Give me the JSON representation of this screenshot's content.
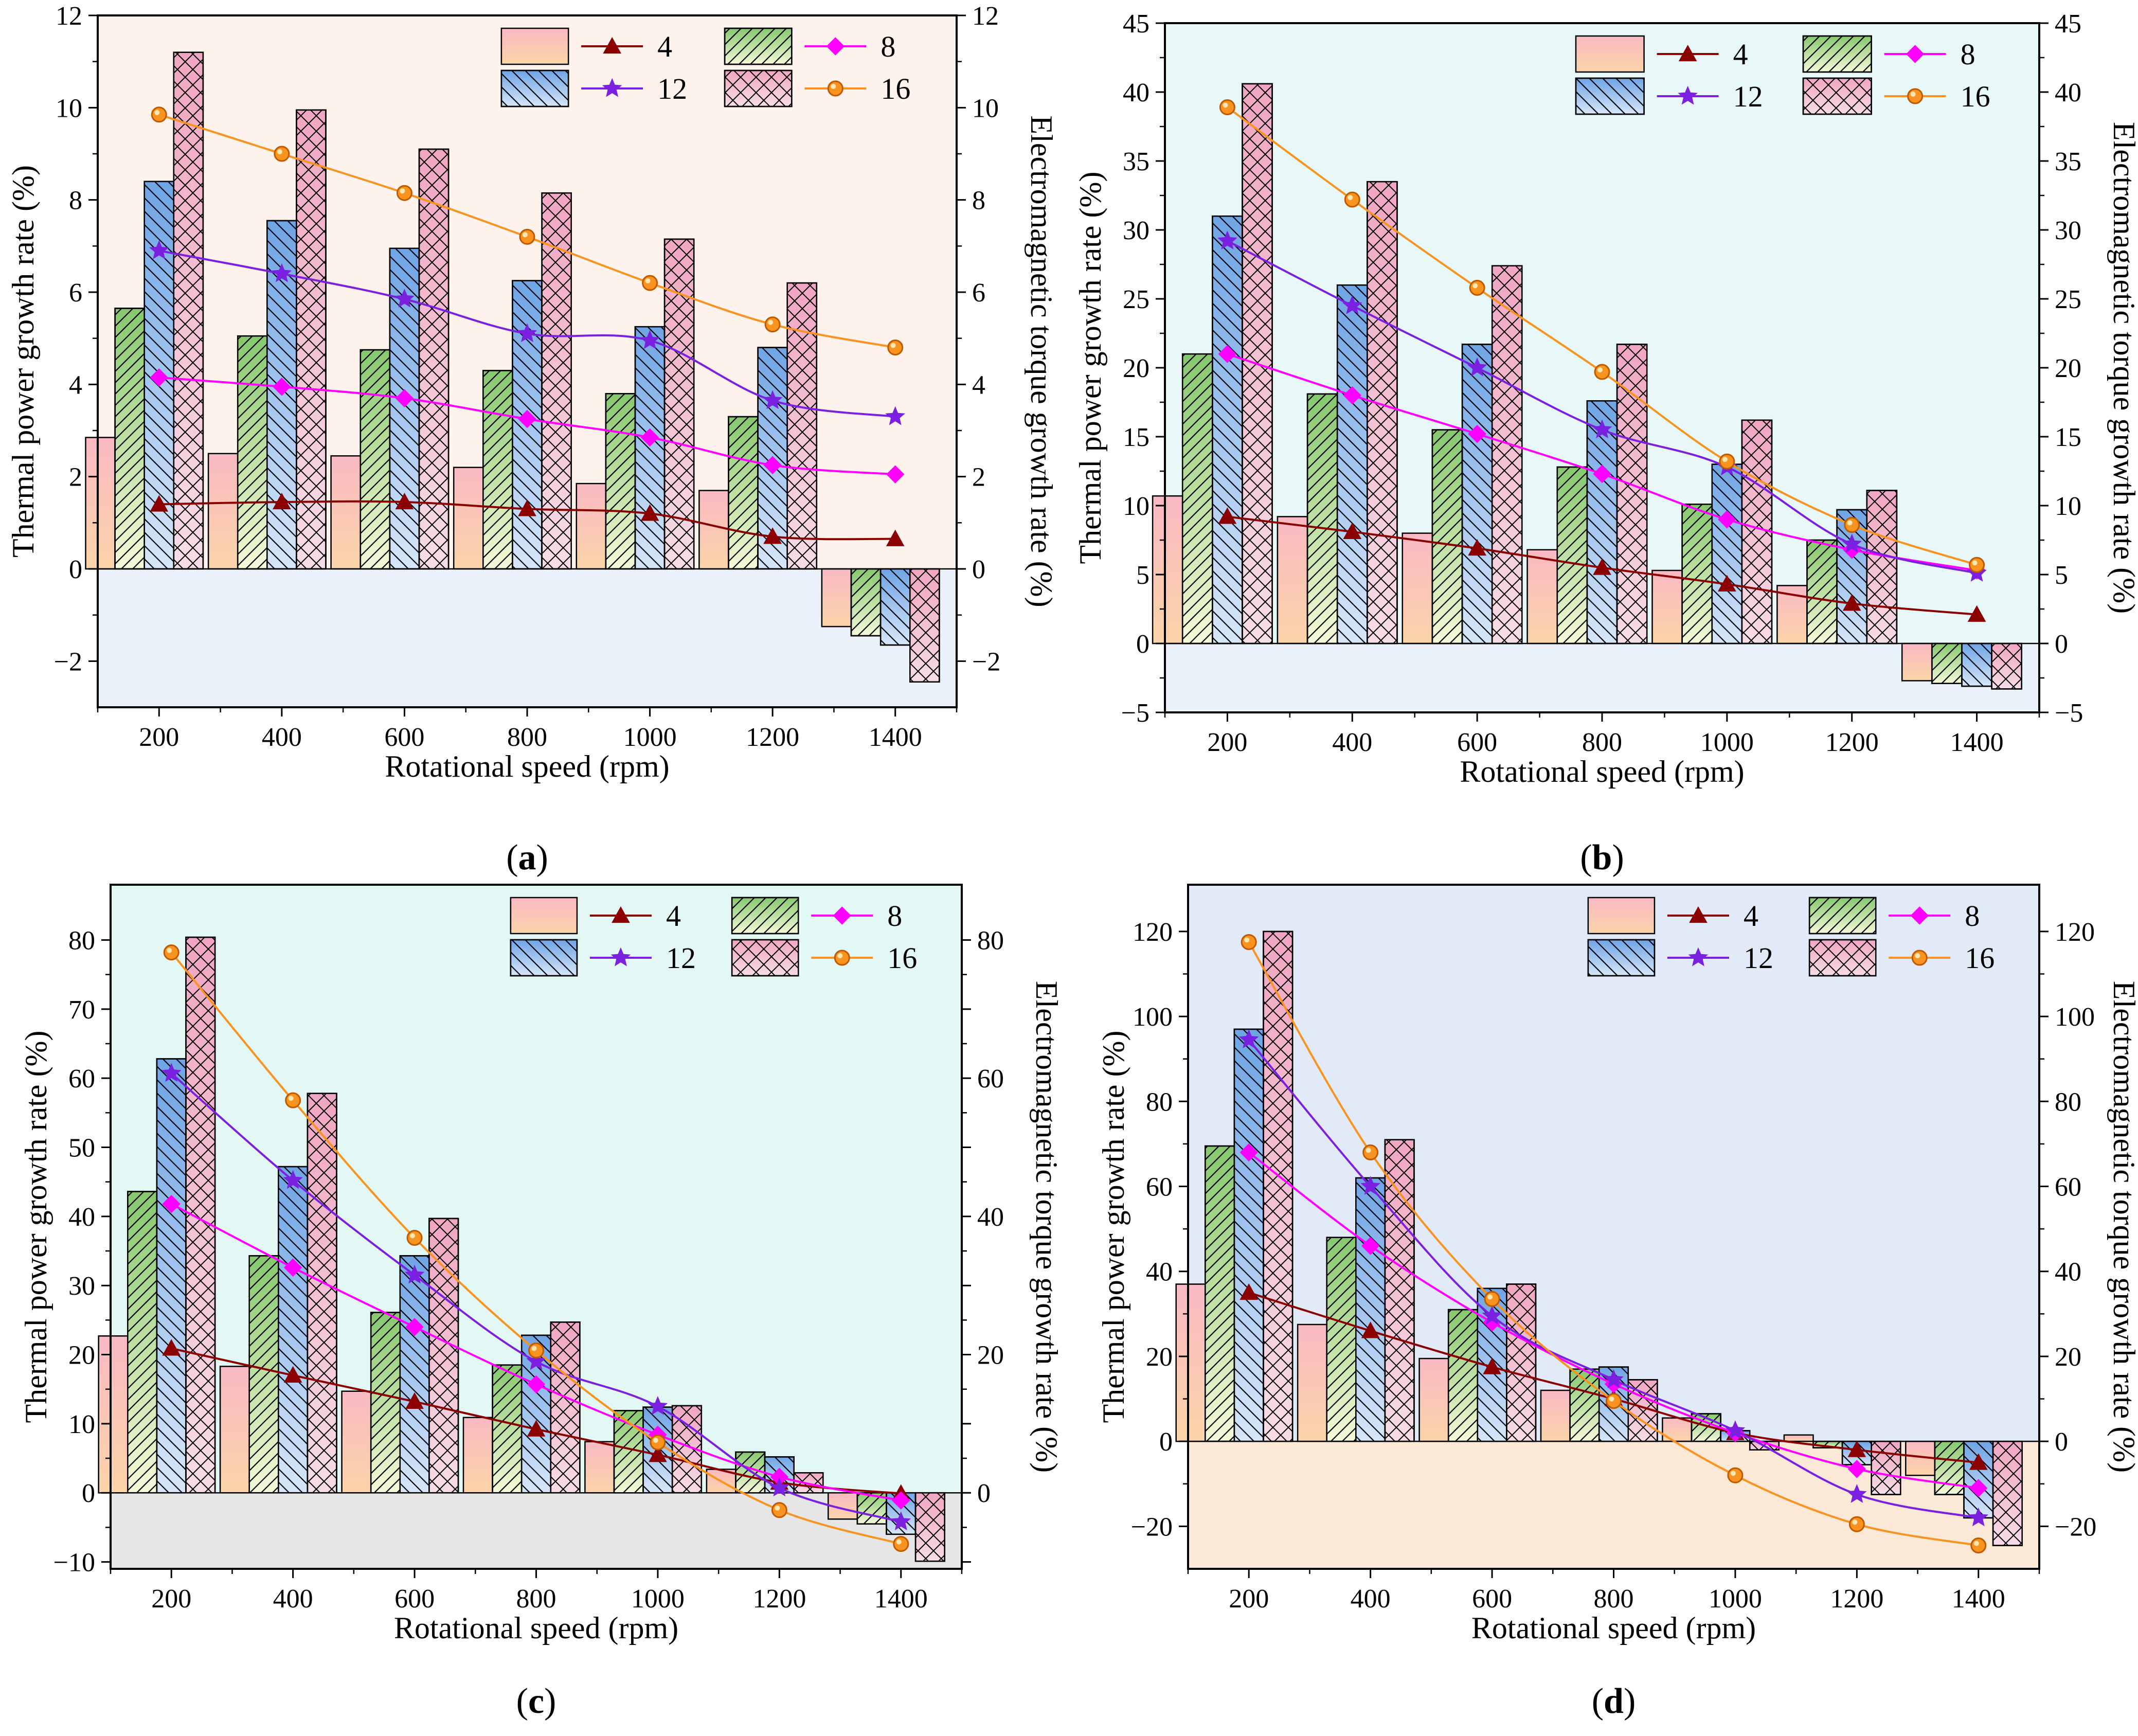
{
  "figure": {
    "series_names": [
      "4",
      "8",
      "12",
      "16"
    ],
    "colors": {
      "s4_line": "#8B0000",
      "s8_line": "#FF00FF",
      "s12_line": "#7B1FE0",
      "s16_line": "#F7931E",
      "bar_fill_4": "#F8C8B8",
      "bar_fill_8": "#B8E0A0",
      "bar_fill_12": "#90B8E8",
      "bar_fill_16": "#E8B8D0"
    }
  },
  "chart_data": [
    {
      "id": "a",
      "panel_label": "(a)",
      "type": "bar+line",
      "xlabel": "Rotational speed (rpm)",
      "ylabel": "Thermal power growth rate (%)",
      "y2label": "Electromagnetic torque growth rate (%)",
      "categories": [
        "200",
        "400",
        "600",
        "800",
        "1000",
        "1200",
        "1400"
      ],
      "x": [
        200,
        400,
        600,
        800,
        1000,
        1200,
        1400
      ],
      "ylim": [
        -3,
        12
      ],
      "yticks": [
        -2,
        0,
        2,
        4,
        6,
        8,
        10,
        12
      ],
      "ytick_labels": [
        "−2",
        "0",
        "2",
        "4",
        "6",
        "8",
        "10",
        "12"
      ],
      "background_pos": "#FDF3EC",
      "background_neg": "#EAF1FA",
      "bars": [
        {
          "name": "4",
          "values": [
            2.85,
            2.5,
            2.45,
            2.2,
            1.85,
            1.7,
            -1.25
          ]
        },
        {
          "name": "8",
          "values": [
            5.65,
            5.05,
            4.75,
            4.3,
            3.8,
            3.3,
            -1.45
          ]
        },
        {
          "name": "12",
          "values": [
            8.4,
            7.55,
            6.95,
            6.25,
            5.25,
            4.8,
            -1.65
          ]
        },
        {
          "name": "16",
          "values": [
            11.2,
            9.95,
            9.1,
            8.15,
            7.15,
            6.2,
            -2.45
          ]
        }
      ],
      "lines": [
        {
          "name": "4",
          "values": [
            1.4,
            1.45,
            1.45,
            1.3,
            1.2,
            0.7,
            0.65
          ]
        },
        {
          "name": "8",
          "values": [
            4.15,
            3.95,
            3.7,
            3.25,
            2.85,
            2.25,
            2.05
          ]
        },
        {
          "name": "12",
          "values": [
            6.9,
            6.4,
            5.85,
            5.1,
            4.95,
            3.65,
            3.3
          ]
        },
        {
          "name": "16",
          "values": [
            9.85,
            9.0,
            8.15,
            7.2,
            6.2,
            5.3,
            4.8
          ]
        }
      ]
    },
    {
      "id": "b",
      "panel_label": "(b)",
      "type": "bar+line",
      "xlabel": "Rotational speed (rpm)",
      "ylabel": "Thermal power growth rate (%)",
      "y2label": "Electromagnetic torque growth rate (%)",
      "categories": [
        "200",
        "400",
        "600",
        "800",
        "1000",
        "1200",
        "1400"
      ],
      "x": [
        200,
        400,
        600,
        800,
        1000,
        1200,
        1400
      ],
      "ylim": [
        -5,
        45
      ],
      "yticks": [
        -5,
        0,
        5,
        10,
        15,
        20,
        25,
        30,
        35,
        40,
        45
      ],
      "ytick_labels": [
        "−5",
        "0",
        "5",
        "10",
        "15",
        "20",
        "25",
        "30",
        "35",
        "40",
        "45"
      ],
      "background_pos": "#E8F8F8",
      "background_neg": "#EAF1FA",
      "bars": [
        {
          "name": "4",
          "values": [
            10.7,
            9.2,
            8.0,
            6.8,
            5.3,
            4.2,
            -2.7
          ]
        },
        {
          "name": "8",
          "values": [
            21.0,
            18.1,
            15.5,
            12.8,
            10.1,
            7.5,
            -2.9
          ]
        },
        {
          "name": "12",
          "values": [
            31.0,
            26.0,
            21.7,
            17.6,
            13.0,
            9.7,
            -3.1
          ]
        },
        {
          "name": "16",
          "values": [
            40.6,
            33.5,
            27.4,
            21.7,
            16.2,
            11.1,
            -3.3
          ]
        }
      ],
      "lines": [
        {
          "name": "4",
          "values": [
            9.2,
            8.1,
            6.9,
            5.5,
            4.3,
            2.9,
            2.1
          ]
        },
        {
          "name": "8",
          "values": [
            21.0,
            18.0,
            15.2,
            12.3,
            9.0,
            6.8,
            5.3
          ]
        },
        {
          "name": "12",
          "values": [
            29.2,
            24.5,
            20.0,
            15.5,
            12.8,
            7.2,
            5.1
          ]
        },
        {
          "name": "16",
          "values": [
            38.9,
            32.2,
            25.8,
            19.7,
            13.2,
            8.6,
            5.7
          ]
        }
      ]
    },
    {
      "id": "c",
      "panel_label": "(c)",
      "type": "bar+line",
      "xlabel": "Rotational speed (rpm)",
      "ylabel": "Thermal power growth rate (%)",
      "y2label": "Electromagnetic torque growth rate (%)",
      "categories": [
        "200",
        "400",
        "600",
        "800",
        "1000",
        "1200",
        "1400"
      ],
      "x": [
        200,
        400,
        600,
        800,
        1000,
        1200,
        1400
      ],
      "ylim": [
        -11,
        88
      ],
      "yticks": [
        -10,
        0,
        10,
        20,
        30,
        40,
        50,
        60,
        70,
        80
      ],
      "ytick_labels": [
        "−10",
        "0",
        "10",
        "20",
        "30",
        "40",
        "50",
        "60",
        "70",
        "80"
      ],
      "y2ticks": [
        0,
        20,
        40,
        60,
        80
      ],
      "background_pos": "#E3F7F4",
      "background_neg": "#E6E6E6",
      "bars": [
        {
          "name": "4",
          "values": [
            22.7,
            18.3,
            14.7,
            10.9,
            7.4,
            3.4,
            -3.8
          ]
        },
        {
          "name": "8",
          "values": [
            43.6,
            34.3,
            26.1,
            18.5,
            11.9,
            5.9,
            -4.5
          ]
        },
        {
          "name": "12",
          "values": [
            62.8,
            47.2,
            34.3,
            22.8,
            12.4,
            5.2,
            -6.0
          ]
        },
        {
          "name": "16",
          "values": [
            80.4,
            57.8,
            39.7,
            24.7,
            12.6,
            2.9,
            -9.9
          ]
        }
      ],
      "lines": [
        {
          "name": "4",
          "values": [
            20.9,
            17.0,
            13.2,
            9.2,
            5.5,
            1.5,
            -0.1
          ]
        },
        {
          "name": "8",
          "values": [
            41.8,
            32.6,
            24.0,
            15.7,
            8.4,
            2.3,
            -1.1
          ]
        },
        {
          "name": "12",
          "values": [
            60.7,
            45.2,
            31.5,
            19.0,
            12.5,
            0.7,
            -4.2
          ]
        },
        {
          "name": "16",
          "values": [
            78.2,
            56.8,
            36.9,
            20.6,
            7.3,
            -2.5,
            -7.4
          ]
        }
      ]
    },
    {
      "id": "d",
      "panel_label": "(d)",
      "type": "bar+line",
      "xlabel": "Rotational speed (rpm)",
      "ylabel": "Thermal power growth rate (%)",
      "y2label": "Electromagnetic torque growth rate (%)",
      "categories": [
        "200",
        "400",
        "600",
        "800",
        "1000",
        "1200",
        "1400"
      ],
      "x": [
        200,
        400,
        600,
        800,
        1000,
        1200,
        1400
      ],
      "ylim": [
        -30,
        131
      ],
      "yticks": [
        -20,
        0,
        20,
        40,
        60,
        80,
        100,
        120
      ],
      "ytick_labels": [
        "−20",
        "0",
        "20",
        "40",
        "60",
        "80",
        "100",
        "120"
      ],
      "background_pos": "#E2EAF8",
      "background_neg": "#FBE8D7",
      "bars": [
        {
          "name": "4",
          "values": [
            37.0,
            27.5,
            19.5,
            12.0,
            5.5,
            1.5,
            -8.0
          ]
        },
        {
          "name": "8",
          "values": [
            69.5,
            48.0,
            31.0,
            17.0,
            6.5,
            -1.5,
            -12.5
          ]
        },
        {
          "name": "12",
          "values": [
            97.0,
            62.0,
            36.0,
            17.5,
            2.5,
            -5.5,
            -18.0
          ]
        },
        {
          "name": "16",
          "values": [
            120.0,
            71.0,
            37.0,
            14.5,
            -2.0,
            -12.5,
            -24.5
          ]
        }
      ],
      "lines": [
        {
          "name": "4",
          "values": [
            35.0,
            26.0,
            17.5,
            10.0,
            2.0,
            -2.0,
            -5.0
          ]
        },
        {
          "name": "8",
          "values": [
            68.0,
            46.0,
            28.0,
            13.5,
            2.0,
            -6.5,
            -11.0
          ]
        },
        {
          "name": "12",
          "values": [
            94.5,
            60.0,
            29.5,
            14.5,
            2.5,
            -12.5,
            -18.0
          ]
        },
        {
          "name": "16",
          "values": [
            117.5,
            68.0,
            33.5,
            9.5,
            -8.0,
            -19.5,
            -24.5
          ]
        }
      ]
    }
  ]
}
